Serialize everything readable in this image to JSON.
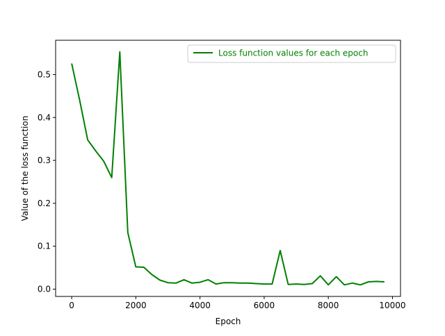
{
  "chart_data": {
    "type": "line",
    "xlabel": "Epoch",
    "ylabel": "Value of the loss function",
    "xlim": [
      -500,
      10250
    ],
    "ylim": [
      -0.017,
      0.58
    ],
    "xticks": [
      0,
      2000,
      4000,
      6000,
      8000,
      10000
    ],
    "yticks": [
      0.0,
      0.1,
      0.2,
      0.3,
      0.4,
      0.5
    ],
    "xtick_labels": [
      "0",
      "2000",
      "4000",
      "6000",
      "8000",
      "10000"
    ],
    "ytick_labels": [
      "0.0",
      "0.1",
      "0.2",
      "0.3",
      "0.4",
      "0.5"
    ],
    "grid": false,
    "legend_position": "upper right",
    "series": [
      {
        "name": "Loss function values for each epoch",
        "color": "#008000",
        "x": [
          0,
          250,
          500,
          750,
          1000,
          1250,
          1500,
          1750,
          2000,
          2250,
          2500,
          2750,
          3000,
          3250,
          3500,
          3750,
          4000,
          4250,
          4500,
          4750,
          5000,
          5250,
          5500,
          5750,
          6000,
          6250,
          6500,
          6750,
          7000,
          7250,
          7500,
          7750,
          8000,
          8250,
          8500,
          8750,
          9000,
          9250,
          9500,
          9750
        ],
        "y": [
          0.526,
          0.44,
          0.348,
          0.322,
          0.298,
          0.26,
          0.553,
          0.132,
          0.052,
          0.051,
          0.034,
          0.021,
          0.015,
          0.014,
          0.022,
          0.014,
          0.016,
          0.022,
          0.012,
          0.015,
          0.015,
          0.014,
          0.014,
          0.013,
          0.012,
          0.012,
          0.09,
          0.011,
          0.012,
          0.011,
          0.013,
          0.031,
          0.01,
          0.029,
          0.01,
          0.014,
          0.01,
          0.017,
          0.018,
          0.017
        ]
      }
    ]
  }
}
